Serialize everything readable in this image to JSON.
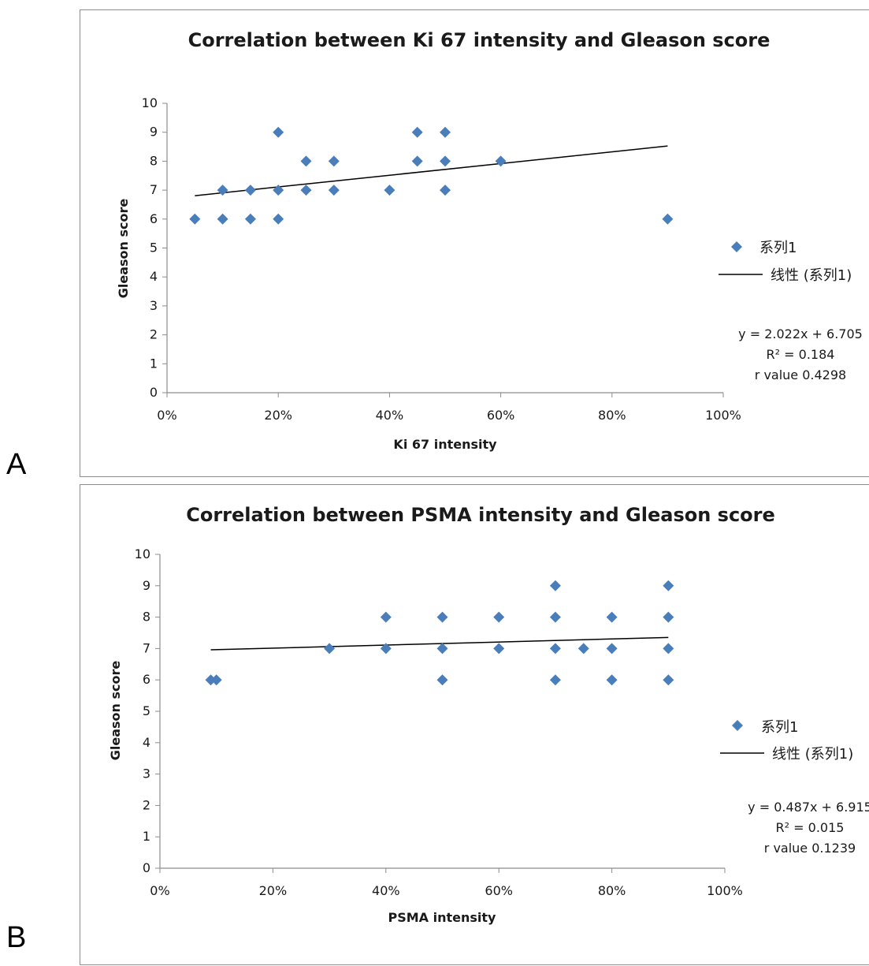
{
  "panels": {
    "a": {
      "letter": "A"
    },
    "b": {
      "letter": "B"
    }
  },
  "chart_data": [
    {
      "type": "scatter",
      "title": "Correlation between Ki 67 intensity and Gleason score",
      "xlabel": "Ki 67 intensity",
      "ylabel": "Gleason score",
      "xlim": [
        0,
        1
      ],
      "ylim": [
        0,
        10
      ],
      "xticks": [
        "0%",
        "20%",
        "40%",
        "60%",
        "80%",
        "100%"
      ],
      "yticks": [
        "0",
        "1",
        "2",
        "3",
        "4",
        "5",
        "6",
        "7",
        "8",
        "9",
        "10"
      ],
      "grid": false,
      "legend_position": "right",
      "marker_color": "#4a7ebb",
      "series": [
        {
          "name": "系列1",
          "x": [
            0.05,
            0.1,
            0.1,
            0.15,
            0.15,
            0.2,
            0.2,
            0.2,
            0.25,
            0.25,
            0.3,
            0.3,
            0.4,
            0.45,
            0.45,
            0.5,
            0.5,
            0.5,
            0.6,
            0.9
          ],
          "y": [
            6,
            6,
            7,
            6,
            7,
            6,
            7,
            9,
            7,
            8,
            7,
            8,
            7,
            8,
            9,
            7,
            8,
            9,
            8,
            6
          ]
        }
      ],
      "trendline": {
        "name": "线性 (系列1)",
        "slope": 2.022,
        "intercept": 6.705,
        "x_range": [
          0.05,
          0.9
        ]
      },
      "annotations": [
        "y = 2.022x + 6.705",
        "R² = 0.184",
        "r value 0.4298"
      ]
    },
    {
      "type": "scatter",
      "title": "Correlation between PSMA intensity and Gleason score",
      "xlabel": "PSMA intensity",
      "ylabel": "Gleason score",
      "xlim": [
        0,
        1
      ],
      "ylim": [
        0,
        10
      ],
      "xticks": [
        "0%",
        "20%",
        "40%",
        "60%",
        "80%",
        "100%"
      ],
      "yticks": [
        "0",
        "1",
        "2",
        "3",
        "4",
        "5",
        "6",
        "7",
        "8",
        "9",
        "10"
      ],
      "grid": false,
      "legend_position": "right",
      "marker_color": "#4a7ebb",
      "series": [
        {
          "name": "系列1",
          "x": [
            0.09,
            0.1,
            0.3,
            0.4,
            0.4,
            0.5,
            0.5,
            0.5,
            0.6,
            0.6,
            0.7,
            0.7,
            0.7,
            0.7,
            0.75,
            0.8,
            0.8,
            0.8,
            0.9,
            0.9,
            0.9,
            0.9
          ],
          "y": [
            6,
            6,
            7,
            7,
            8,
            6,
            7,
            8,
            7,
            8,
            6,
            7,
            8,
            9,
            7,
            6,
            7,
            8,
            6,
            7,
            8,
            9
          ]
        }
      ],
      "trendline": {
        "name": "线性 (系列1)",
        "slope": 0.487,
        "intercept": 6.915,
        "x_range": [
          0.09,
          0.9
        ]
      },
      "annotations": [
        "y = 0.487x + 6.915",
        "R² = 0.015",
        "r value 0.1239"
      ]
    }
  ]
}
